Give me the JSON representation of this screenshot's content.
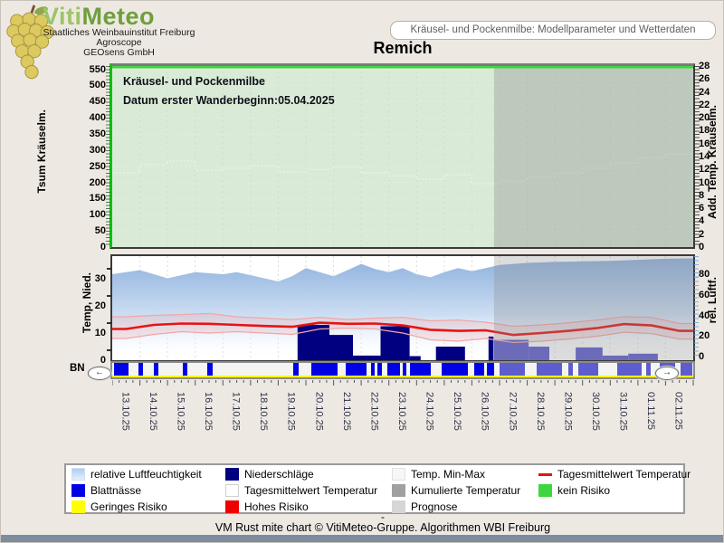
{
  "header": {
    "brand_viti": "Viti",
    "brand_meteo": "Meteo",
    "org_lines": [
      "Staatliches Weinbauinstitut Freiburg",
      "Agroscope",
      "GEOsens GmbH"
    ],
    "model_box_label": "Kräusel- und Pockenmilbe: Modellparameter und Wetterdaten",
    "station_title": "Remich"
  },
  "controls": {
    "scroll_left": "←",
    "scroll_right": "→"
  },
  "legend": {
    "items": [
      {
        "label": "relative Luftfeuchtigkeit",
        "swatch": "humidity"
      },
      {
        "label": "Niederschläge",
        "swatch": "precip"
      },
      {
        "label": "Temp. Min-Max",
        "swatch": "minmax"
      },
      {
        "label": "Tagesmittelwert Temperatur",
        "swatch": "redline"
      },
      {
        "label": "Blattnässe",
        "swatch": "wetness"
      },
      {
        "label": "Tagesmittelwert Temperatur",
        "swatch": "white"
      },
      {
        "label": "Kumulierte Temperatur",
        "swatch": "gray"
      },
      {
        "label": "kein Risiko",
        "swatch": "green"
      },
      {
        "label": "Geringes Risiko",
        "swatch": "yellow"
      },
      {
        "label": "Hohes Risiko",
        "swatch": "red"
      },
      {
        "label": "Prognose",
        "swatch": "lightgray"
      }
    ]
  },
  "footer": {
    "dash": "-",
    "credit": "VM Rust mite chart © VitiMeteo-Gruppe. Algorithmen WBI Freiburg"
  },
  "colors": {
    "page_bg": "#EDE9E2",
    "plot_green": "#D9EBD7",
    "axis_green": "#00C400",
    "risk_none": "#3ED63E",
    "risk_low": "#FFFF00",
    "risk_high": "#EE0000",
    "precip": "#000080",
    "wetness": "#0000E6",
    "forecast_bar": "#5D5DCF",
    "temp_line": "#E61414",
    "band_edge": "#F2A6A6",
    "humidity_top": "#8FB2DE",
    "humidity_mid": "#CBDDF2",
    "gray_swatch": "#A0A0A0",
    "prognose_swatch": "#D6D6D6",
    "minmax_swatch": "#F8F6F6",
    "bottom_bar": "#7E8D9E",
    "date_text": "#30304A"
  },
  "chart_data": {
    "type": "composite",
    "x": {
      "dates": [
        "13.10.25",
        "14.10.25",
        "15.10.25",
        "16.10.25",
        "17.10.25",
        "18.10.25",
        "19.10.25",
        "20.10.25",
        "21.10.25",
        "22.10.25",
        "23.10.25",
        "24.10.25",
        "25.10.25",
        "26.10.25",
        "27.10.25",
        "28.10.25",
        "29.10.25",
        "30.10.25",
        "31.10.25",
        "01.11.25",
        "02.11.25"
      ],
      "days_total": 21,
      "forecast_start_day": 13.8
    },
    "mite_model": {
      "type": "line",
      "title": "Kräusel- und Pockenmilbe",
      "subtitle": "Datum  erster Wanderbeginn:05.04.2025",
      "left_axis": {
        "title": "Tsum Kräuselm.",
        "range": [
          0,
          560
        ],
        "ticks": [
          0,
          50,
          100,
          150,
          200,
          250,
          300,
          350,
          400,
          450,
          500,
          550
        ]
      },
      "right_axis": {
        "title": "Add. Temp. Kräuselm.",
        "range": [
          0,
          28
        ],
        "ticks": [
          0,
          2,
          4,
          6,
          8,
          10,
          12,
          14,
          16,
          18,
          20,
          22,
          24,
          26,
          28
        ]
      },
      "risk_status": "kein Risiko",
      "cumulated_temp_daily": [
        11.5,
        12.8,
        13.3,
        11.9,
        12.2,
        12.6,
        11.6,
        12.0,
        12.4,
        11.5,
        11.0,
        10.5,
        11.2,
        9.8,
        10.2,
        10.8,
        11.5,
        12.2,
        13.0,
        13.8,
        14.4
      ]
    },
    "weather": {
      "type": "area+line+bar",
      "left_axis": {
        "title": "Temp, Nied.",
        "range": [
          0,
          38
        ],
        "ticks": [
          0,
          10,
          20,
          30
        ]
      },
      "right_axis": {
        "title": "rel. Luftf.",
        "range": [
          0,
          98
        ],
        "ticks": [
          0,
          20,
          40,
          60,
          80
        ]
      },
      "humidity_points": [
        [
          0,
          80
        ],
        [
          0.5,
          82
        ],
        [
          1,
          84
        ],
        [
          1.5,
          80
        ],
        [
          2,
          76
        ],
        [
          2.5,
          79
        ],
        [
          3,
          82
        ],
        [
          3.5,
          81
        ],
        [
          4,
          80
        ],
        [
          4.5,
          82
        ],
        [
          5,
          79
        ],
        [
          5.5,
          76
        ],
        [
          6,
          73
        ],
        [
          6.5,
          78
        ],
        [
          7,
          86
        ],
        [
          7.5,
          82
        ],
        [
          8,
          78
        ],
        [
          8.5,
          84
        ],
        [
          9,
          90
        ],
        [
          9.5,
          85
        ],
        [
          10,
          82
        ],
        [
          10.5,
          86
        ],
        [
          11,
          80
        ],
        [
          11.5,
          77
        ],
        [
          12,
          82
        ],
        [
          12.5,
          86
        ],
        [
          13,
          83
        ],
        [
          13.5,
          86
        ],
        [
          14,
          89
        ],
        [
          15,
          91
        ],
        [
          16,
          92
        ],
        [
          17,
          92.5
        ],
        [
          18,
          93
        ],
        [
          19,
          94
        ],
        [
          20,
          95
        ],
        [
          21,
          95.5
        ]
      ],
      "temp_mean_daily": [
        11.5,
        13,
        13.5,
        13.4,
        13,
        12.6,
        12.3,
        13.8,
        13.4,
        13.5,
        12.8,
        11.2,
        10.8,
        11,
        9.3,
        10,
        10.8,
        11.8,
        13.3,
        12.8,
        10.8
      ],
      "temp_max_daily": [
        16,
        16.5,
        16.8,
        17.2,
        16,
        15.5,
        15,
        15.8,
        15,
        15.5,
        15.8,
        14.5,
        14.8,
        14,
        12.5,
        13,
        13.8,
        14.8,
        16,
        15.8,
        13.5
      ],
      "temp_min_daily": [
        8,
        9.5,
        10.5,
        10,
        10.5,
        10,
        9.5,
        11.5,
        11.8,
        11.5,
        10,
        7.5,
        7,
        8,
        6.5,
        7,
        7.8,
        8.8,
        10.3,
        9.8,
        7.8
      ],
      "precip_segments": [
        [
          6.7,
          7.85,
          13
        ],
        [
          7.85,
          8.7,
          9.3
        ],
        [
          8.7,
          9.7,
          1.7
        ],
        [
          9.7,
          10.75,
          12.5
        ],
        [
          10.75,
          11.15,
          1.5
        ],
        [
          11.7,
          12.75,
          5
        ],
        [
          13.6,
          13.78,
          8.7
        ]
      ],
      "precip_forecast_segments": [
        [
          13.8,
          15.05,
          7.5
        ],
        [
          15.05,
          15.8,
          5
        ],
        [
          16.75,
          17.72,
          4.7
        ],
        [
          17.72,
          18.65,
          1.7
        ],
        [
          18.65,
          19.72,
          2.4
        ]
      ]
    },
    "leaf_wetness": {
      "type": "bar",
      "label": "BN",
      "segments": [
        [
          0.05,
          0.6
        ],
        [
          0.95,
          1.1
        ],
        [
          1.5,
          1.68
        ],
        [
          2.55,
          2.72
        ],
        [
          3.45,
          3.62
        ],
        [
          6.55,
          6.75
        ],
        [
          7.2,
          8.15
        ],
        [
          8.45,
          9.2
        ],
        [
          9.35,
          9.5
        ],
        [
          9.6,
          9.75
        ],
        [
          9.95,
          10.4
        ],
        [
          10.5,
          10.62
        ],
        [
          10.75,
          11.5
        ],
        [
          11.9,
          12.85
        ],
        [
          13.1,
          13.45
        ],
        [
          13.55,
          13.8
        ]
      ],
      "segments_forecast": [
        [
          14.0,
          14.9
        ],
        [
          15.35,
          16.25
        ],
        [
          16.5,
          16.65
        ],
        [
          16.85,
          17.55
        ],
        [
          18.25,
          19.15
        ],
        [
          19.3,
          19.45
        ],
        [
          19.8,
          20.35
        ],
        [
          20.55,
          20.97
        ]
      ],
      "low_risk_line": "Geringes Risiko"
    }
  }
}
